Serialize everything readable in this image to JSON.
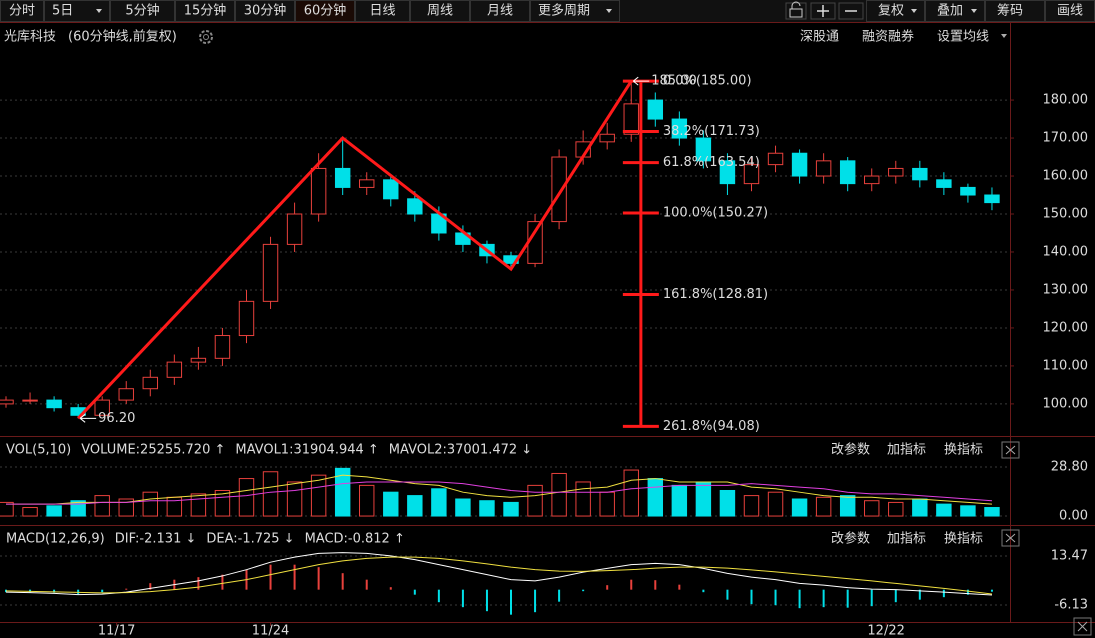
{
  "toolbar": {
    "items": [
      "分时",
      "5日",
      "5分钟",
      "15分钟",
      "30分钟",
      "60分钟",
      "日线",
      "周线",
      "月线",
      "更多周期"
    ],
    "active_index": 5,
    "right_buttons": [
      {
        "label": "复权",
        "color": "#ff5a3c"
      },
      {
        "label": "叠加",
        "color": "#dddddd"
      },
      {
        "label": "筹码",
        "color": "#ff5a3c"
      },
      {
        "label": "画线",
        "color": "#ff5a3c"
      }
    ]
  },
  "chart_data": {
    "type": "candlestick",
    "title": "光库科技",
    "subtitle": "(60分钟线,前复权)",
    "links": [
      "深股通",
      "融资融券",
      "设置均线"
    ],
    "up_color": "#e8413c",
    "down_color": "#00e0e8",
    "open": [
      100,
      101,
      101,
      99,
      97,
      101,
      104,
      107,
      111,
      112,
      118,
      127,
      142,
      150,
      162,
      157,
      159,
      154,
      150,
      145,
      142,
      139,
      137,
      148,
      165,
      169,
      171,
      180,
      175,
      170,
      164,
      158,
      163,
      166,
      160,
      164,
      158,
      160,
      162,
      159,
      157,
      155
    ],
    "high": [
      102,
      103,
      102,
      100,
      102,
      106,
      109,
      113,
      115,
      120,
      130,
      144,
      153,
      166,
      170,
      161,
      160,
      156,
      152,
      147,
      143,
      140,
      150,
      167,
      172,
      174,
      185,
      182,
      177,
      172,
      166,
      165,
      168,
      167,
      166,
      165,
      162,
      164,
      164,
      161,
      158,
      157
    ],
    "low": [
      99,
      100,
      98,
      96.2,
      97,
      100,
      102,
      105,
      109,
      110,
      116,
      125,
      140,
      148,
      155,
      155,
      152,
      148,
      143,
      140,
      137,
      135.5,
      136,
      146,
      163,
      167,
      169,
      173,
      168,
      162,
      155,
      156,
      161,
      158,
      158,
      156,
      156,
      158,
      157,
      155,
      153,
      151
    ],
    "close": [
      101,
      101,
      99,
      97,
      101,
      104,
      107,
      111,
      112,
      118,
      127,
      142,
      150,
      162,
      157,
      159,
      154,
      150,
      145,
      142,
      139,
      137,
      148,
      165,
      169,
      171,
      179,
      175,
      170,
      164,
      158,
      163,
      166,
      160,
      164,
      158,
      160,
      162,
      159,
      157,
      155,
      153
    ],
    "xlim": [
      -0.25,
      41.75
    ],
    "xticks": [
      {
        "value": 4.6,
        "label": "11/17"
      },
      {
        "value": 11,
        "label": "11/24"
      },
      {
        "value": 36.6,
        "label": "12/22"
      }
    ],
    "ylim": [
      92.6,
      194.5
    ],
    "yticks": [
      {
        "value": 100,
        "label": "100.00"
      },
      {
        "value": 110,
        "label": "110.00"
      },
      {
        "value": 120,
        "label": "120.00"
      },
      {
        "value": 130,
        "label": "130.00"
      },
      {
        "value": 140,
        "label": "140.00"
      },
      {
        "value": 150,
        "label": "150.00"
      },
      {
        "value": 160,
        "label": "160.00"
      },
      {
        "value": 170,
        "label": "170.00"
      },
      {
        "value": 180,
        "label": "180.00"
      }
    ],
    "grid": true,
    "zigzag": {
      "color": "#ff1a1a",
      "x": [
        3,
        14,
        21,
        26
      ],
      "values": [
        96.2,
        170,
        135.5,
        185
      ]
    },
    "fibonacci": {
      "color": "#ff1a1a",
      "x": 26.4,
      "levels": [
        {
          "value": 185,
          "label": "0.0%(185.00)"
        },
        {
          "value": 171.73,
          "label": "38.2%(171.73)"
        },
        {
          "value": 163.54,
          "label": "61.8%(163.54)"
        },
        {
          "value": 150.27,
          "label": "100.0%(150.27)"
        },
        {
          "value": 128.81,
          "label": "161.8%(128.81)"
        },
        {
          "value": 94.08,
          "label": "261.8%(94.08)"
        }
      ]
    },
    "annotations": [
      {
        "x": 26,
        "value": 185,
        "label": "185.00"
      },
      {
        "x": 3,
        "value": 96.2,
        "label": "96.20"
      }
    ],
    "volume": {
      "header": [
        {
          "text": "VOL(5,10)",
          "color": "#bbbbbb"
        },
        {
          "text": "VOLUME:25255.720 ↑",
          "color": "#ffffff"
        },
        {
          "text": "MAVOL1:31904.944 ↑",
          "color": "#f0e040"
        },
        {
          "text": "MAVOL2:37001.472 ↓",
          "color": "#e040e0"
        }
      ],
      "buttons": [
        "改参数",
        "加指标",
        "换指标"
      ],
      "values": [
        8,
        5,
        6,
        9,
        12,
        10,
        14,
        11,
        13,
        15,
        22,
        26,
        20,
        24,
        28,
        18,
        14,
        12,
        16,
        10,
        9,
        8,
        18,
        25,
        20,
        14,
        27,
        22,
        18,
        20,
        15,
        12,
        14,
        10,
        11,
        12,
        9,
        8,
        10,
        7,
        6,
        5
      ],
      "series": [
        {
          "name": "MAVOL1",
          "color": "#f0e040",
          "values": [
            7,
            7,
            7,
            8,
            8,
            8,
            10,
            11,
            12,
            13,
            15,
            17,
            19,
            21,
            24,
            23,
            21,
            19,
            18,
            14,
            12,
            11,
            12,
            14,
            16,
            17,
            21,
            22,
            20,
            20,
            20,
            17,
            16,
            14,
            12,
            11,
            11,
            10,
            10,
            9,
            8,
            7
          ]
        },
        {
          "name": "MAVOL2",
          "color": "#e040e0",
          "values": [
            7,
            7,
            7,
            7,
            8,
            8,
            9,
            9,
            10,
            11,
            12,
            14,
            15,
            17,
            19,
            20,
            20,
            20,
            20,
            19,
            17,
            15,
            14,
            14,
            14,
            14,
            16,
            17,
            18,
            18,
            18,
            19,
            18,
            17,
            16,
            14,
            13,
            13,
            12,
            11,
            10,
            9
          ]
        }
      ],
      "ylim": [
        -3.5,
        32.9
      ],
      "yticks": [
        {
          "value": 28.8,
          "label": "28.80"
        },
        {
          "value": 0,
          "label": "0.00"
        }
      ]
    },
    "macd": {
      "header": [
        {
          "text": "MACD(12,26,9)",
          "color": "#bbbbbb"
        },
        {
          "text": "DIF:-2.131 ↓",
          "color": "#ffffff"
        },
        {
          "text": "DEA:-1.725 ↓",
          "color": "#f0e040"
        },
        {
          "text": "MACD:-0.812 ↑",
          "color": "#e040e0"
        }
      ],
      "buttons": [
        "改参数",
        "加指标",
        "换指标"
      ],
      "values": [
        -1,
        -1,
        -1.2,
        -1.8,
        -1,
        0.4,
        2.6,
        4,
        5,
        6,
        8,
        10,
        10,
        9,
        6.6,
        4,
        1,
        -2,
        -5,
        -7,
        -8.6,
        -10,
        -9,
        -4.8,
        -0.6,
        1.8,
        4,
        3.8,
        2,
        -1,
        -4,
        -5.8,
        -6.2,
        -7.4,
        -7,
        -7.2,
        -6.6,
        -5,
        -4,
        -3,
        -2,
        -0.812
      ],
      "series": [
        {
          "name": "DIF",
          "color": "#ffffff",
          "values": [
            -1,
            -1.2,
            -1.5,
            -2,
            -1.8,
            -1,
            0.5,
            2,
            3.5,
            5.5,
            8,
            11,
            13,
            14.5,
            14.8,
            14.5,
            13.5,
            12,
            10,
            8,
            6,
            4,
            3.5,
            5,
            7,
            8.5,
            10,
            10.5,
            10,
            8.5,
            6.5,
            5,
            4,
            2.5,
            1.8,
            0.8,
            0.2,
            0,
            -0.5,
            -1,
            -1.6,
            -2.131
          ]
        },
        {
          "name": "DEA",
          "color": "#f0e040",
          "values": [
            -0.5,
            -0.7,
            -0.9,
            -1.1,
            -1.3,
            -1.2,
            -0.8,
            0,
            1,
            2.5,
            4,
            6,
            8,
            10,
            11.5,
            12.5,
            13,
            13,
            12.5,
            11.5,
            10.3,
            9,
            8,
            7.4,
            7.3,
            7.6,
            8,
            8.6,
            9,
            9,
            8.6,
            7.9,
            7.1,
            6.2,
            5.3,
            4.4,
            3.5,
            2.5,
            1.5,
            0.5,
            -0.6,
            -1.725
          ]
        }
      ],
      "ylim": [
        -12.93,
        19.87
      ],
      "yticks": [
        {
          "value": 13.47,
          "label": "13.47"
        },
        {
          "value": -6.13,
          "label": "-6.13"
        }
      ]
    }
  }
}
